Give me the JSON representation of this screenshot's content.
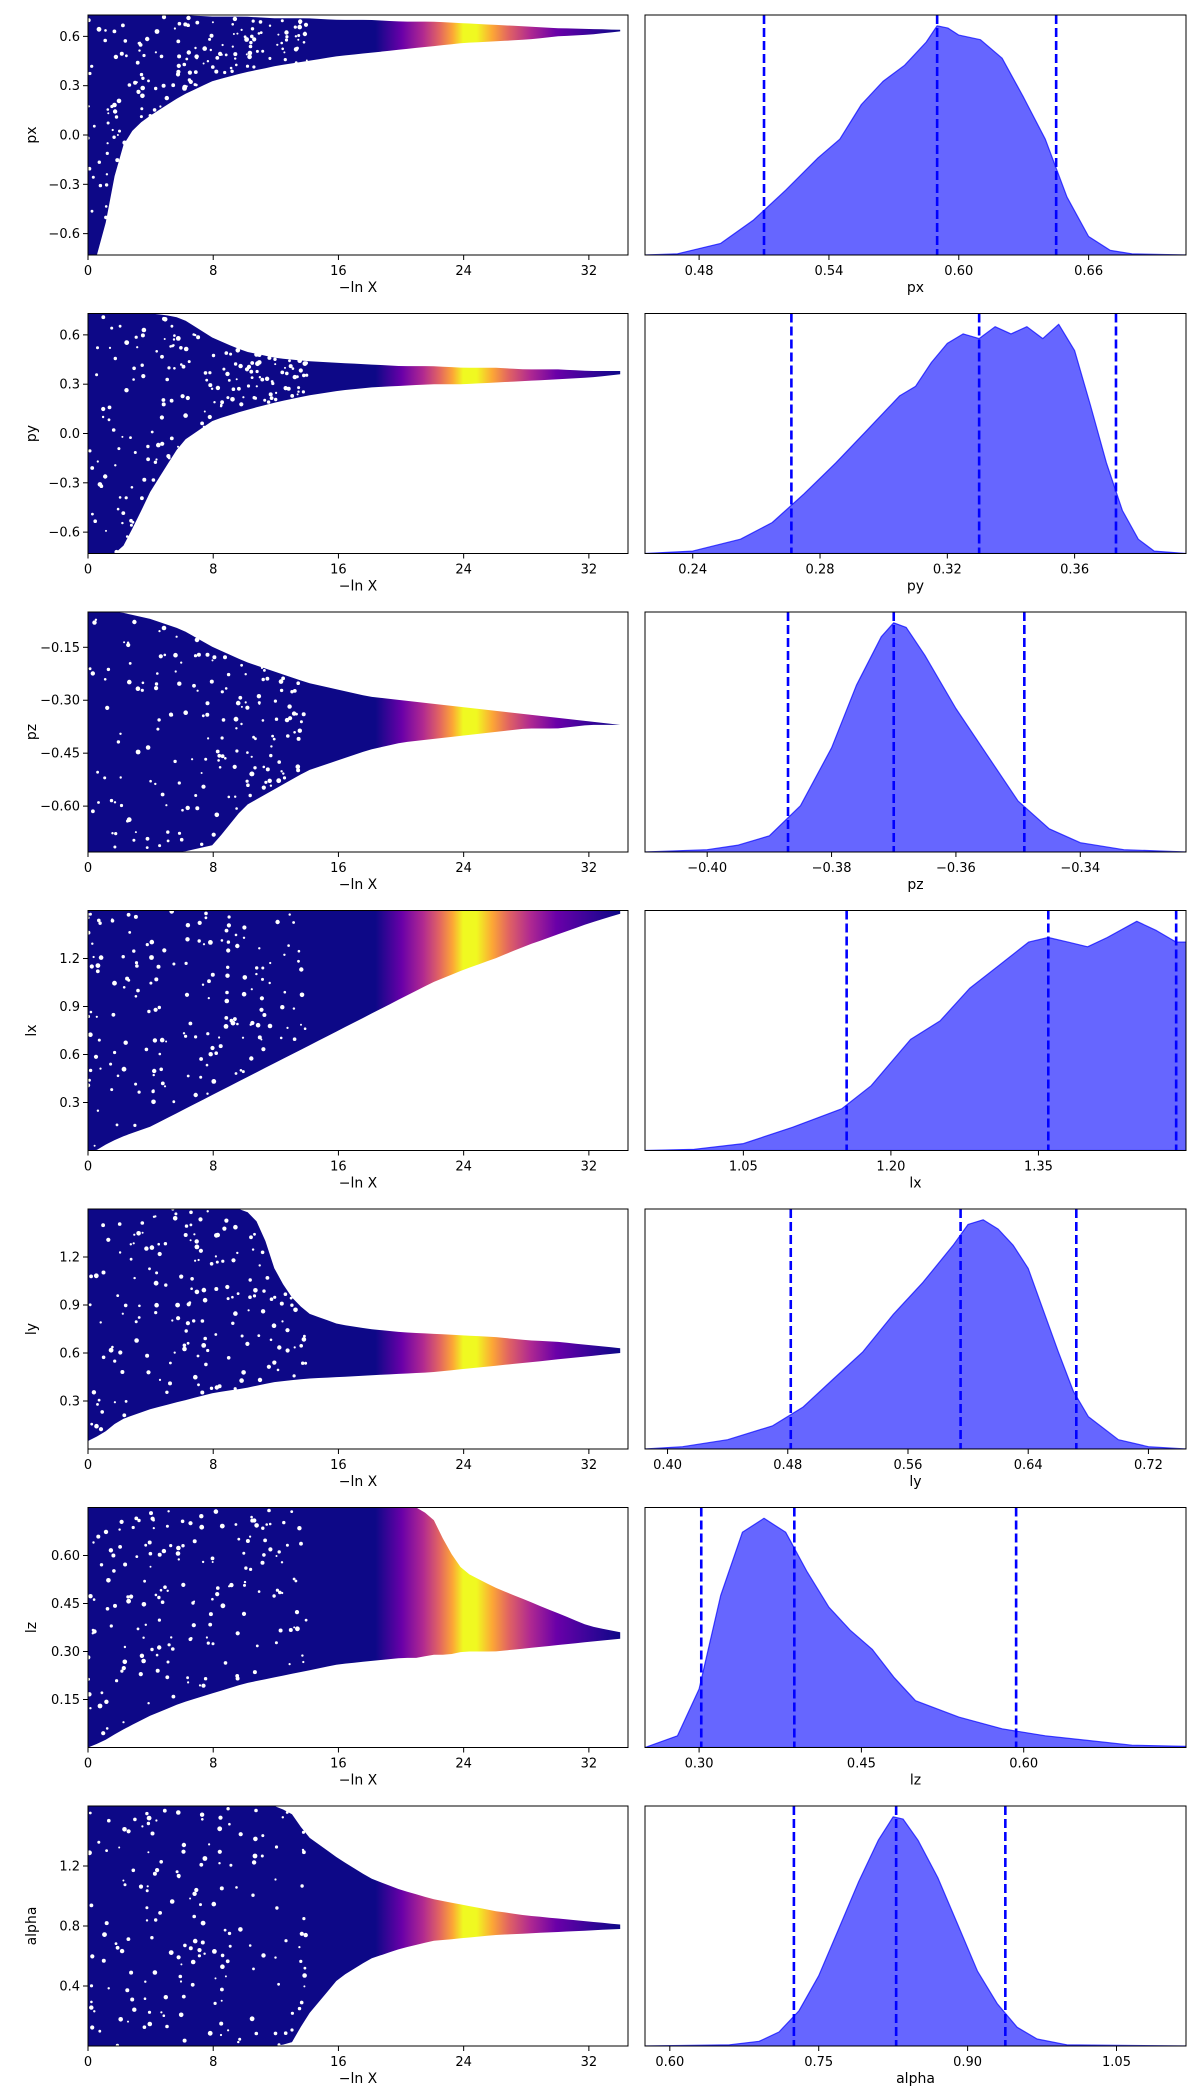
{
  "chart_data": [
    {
      "type": "scatter",
      "panel": "trace",
      "param": "px",
      "xlabel": "−ln X",
      "ylabel": "px",
      "xlim": [
        0,
        34.5
      ],
      "ylim": [
        -0.73,
        0.73
      ],
      "xticks": [
        0,
        8,
        16,
        24,
        32
      ],
      "yticks": [
        -0.6,
        -0.3,
        0.0,
        0.3,
        0.6
      ],
      "envelope": {
        "x": [
          0,
          0.6,
          1,
          1.6,
          2,
          3,
          4,
          5,
          6,
          8,
          10,
          12,
          14,
          16,
          18,
          20,
          22,
          24,
          26,
          28,
          30,
          32,
          34
        ],
        "upper": [
          0.73,
          0.73,
          0.73,
          0.73,
          0.73,
          0.73,
          0.73,
          0.73,
          0.73,
          0.72,
          0.72,
          0.71,
          0.71,
          0.7,
          0.7,
          0.69,
          0.69,
          0.68,
          0.67,
          0.66,
          0.65,
          0.645,
          0.64
        ],
        "lower": [
          -0.73,
          -0.73,
          -0.6,
          -0.3,
          -0.1,
          0.05,
          0.12,
          0.18,
          0.24,
          0.33,
          0.38,
          0.42,
          0.45,
          0.48,
          0.5,
          0.52,
          0.54,
          0.56,
          0.57,
          0.58,
          0.6,
          0.61,
          0.63
        ]
      }
    },
    {
      "type": "area",
      "panel": "posterior",
      "param": "px",
      "xlabel": "px",
      "xlim": [
        0.455,
        0.705
      ],
      "xticks": [
        0.48,
        0.54,
        0.6,
        0.66
      ],
      "quantiles": [
        0.51,
        0.59,
        0.645
      ],
      "x": [
        0.455,
        0.47,
        0.49,
        0.505,
        0.52,
        0.535,
        0.545,
        0.555,
        0.565,
        0.575,
        0.585,
        0.59,
        0.595,
        0.6,
        0.61,
        0.62,
        0.63,
        0.64,
        0.65,
        0.66,
        0.67,
        0.68,
        0.705
      ],
      "density": [
        0,
        0.005,
        0.05,
        0.15,
        0.28,
        0.42,
        0.5,
        0.65,
        0.75,
        0.82,
        0.92,
        0.99,
        0.98,
        0.95,
        0.93,
        0.85,
        0.68,
        0.5,
        0.25,
        0.08,
        0.02,
        0.005,
        0
      ]
    },
    {
      "type": "scatter",
      "panel": "trace",
      "param": "py",
      "xlabel": "−ln X",
      "ylabel": "py",
      "xlim": [
        0,
        34.5
      ],
      "ylim": [
        -0.73,
        0.73
      ],
      "xticks": [
        0,
        8,
        16,
        24,
        32
      ],
      "yticks": [
        -0.6,
        -0.3,
        0.0,
        0.3,
        0.6
      ],
      "envelope": {
        "x": [
          0,
          1,
          2,
          3,
          4,
          5,
          6,
          8,
          10,
          12,
          14,
          16,
          18,
          20,
          22,
          24,
          26,
          28,
          30,
          32,
          34
        ],
        "upper": [
          0.73,
          0.73,
          0.73,
          0.73,
          0.73,
          0.72,
          0.7,
          0.58,
          0.5,
          0.46,
          0.44,
          0.43,
          0.42,
          0.41,
          0.41,
          0.4,
          0.4,
          0.39,
          0.39,
          0.38,
          0.38
        ],
        "lower": [
          -0.73,
          -0.73,
          -0.73,
          -0.55,
          -0.35,
          -0.2,
          -0.05,
          0.08,
          0.14,
          0.19,
          0.23,
          0.26,
          0.28,
          0.29,
          0.3,
          0.3,
          0.31,
          0.32,
          0.33,
          0.34,
          0.36
        ]
      }
    },
    {
      "type": "area",
      "panel": "posterior",
      "param": "py",
      "xlabel": "py",
      "xlim": [
        0.225,
        0.395
      ],
      "xticks": [
        0.24,
        0.28,
        0.32,
        0.36
      ],
      "quantiles": [
        0.271,
        0.33,
        0.373
      ],
      "x": [
        0.225,
        0.24,
        0.255,
        0.265,
        0.275,
        0.285,
        0.295,
        0.305,
        0.31,
        0.315,
        0.32,
        0.325,
        0.33,
        0.335,
        0.34,
        0.345,
        0.35,
        0.355,
        0.36,
        0.365,
        0.37,
        0.375,
        0.38,
        0.385,
        0.395
      ],
      "density": [
        0,
        0.01,
        0.06,
        0.13,
        0.25,
        0.38,
        0.52,
        0.66,
        0.7,
        0.8,
        0.88,
        0.92,
        0.9,
        0.95,
        0.92,
        0.95,
        0.9,
        0.96,
        0.85,
        0.62,
        0.38,
        0.18,
        0.06,
        0.01,
        0
      ]
    },
    {
      "type": "scatter",
      "panel": "trace",
      "param": "pz",
      "xlabel": "−ln X",
      "ylabel": "pz",
      "xlim": [
        0,
        34.5
      ],
      "ylim": [
        -0.73,
        -0.05
      ],
      "xticks": [
        0,
        8,
        16,
        24,
        32
      ],
      "yticks": [
        -0.6,
        -0.45,
        -0.3,
        -0.15
      ],
      "envelope": {
        "x": [
          0,
          1,
          2,
          4,
          6,
          8,
          10,
          12,
          14,
          16,
          18,
          20,
          22,
          24,
          26,
          28,
          30,
          32,
          34
        ],
        "upper": [
          -0.05,
          -0.05,
          -0.05,
          -0.07,
          -0.1,
          -0.15,
          -0.19,
          -0.22,
          -0.25,
          -0.27,
          -0.29,
          -0.3,
          -0.31,
          -0.32,
          -0.33,
          -0.34,
          -0.35,
          -0.36,
          -0.37
        ],
        "lower": [
          -0.73,
          -0.73,
          -0.73,
          -0.73,
          -0.73,
          -0.71,
          -0.6,
          -0.55,
          -0.5,
          -0.47,
          -0.44,
          -0.42,
          -0.41,
          -0.4,
          -0.39,
          -0.38,
          -0.38,
          -0.37,
          -0.37
        ]
      }
    },
    {
      "type": "area",
      "panel": "posterior",
      "param": "pz",
      "xlabel": "pz",
      "xlim": [
        -0.41,
        -0.323
      ],
      "xticks": [
        -0.4,
        -0.38,
        -0.36,
        -0.34
      ],
      "quantiles": [
        -0.387,
        -0.37,
        -0.349
      ],
      "x": [
        -0.41,
        -0.4,
        -0.395,
        -0.39,
        -0.385,
        -0.38,
        -0.376,
        -0.372,
        -0.37,
        -0.368,
        -0.365,
        -0.36,
        -0.355,
        -0.35,
        -0.345,
        -0.34,
        -0.333,
        -0.323
      ],
      "density": [
        0,
        0.01,
        0.03,
        0.07,
        0.2,
        0.45,
        0.72,
        0.93,
        0.99,
        0.97,
        0.85,
        0.62,
        0.42,
        0.22,
        0.1,
        0.04,
        0.01,
        0
      ]
    },
    {
      "type": "scatter",
      "panel": "trace",
      "param": "lx",
      "xlabel": "−ln X",
      "ylabel": "lx",
      "xlim": [
        0,
        34.5
      ],
      "ylim": [
        0,
        1.5
      ],
      "xticks": [
        0,
        8,
        16,
        24,
        32
      ],
      "yticks": [
        0.3,
        0.6,
        0.9,
        1.2
      ],
      "envelope": {
        "x": [
          0,
          0.5,
          1,
          2,
          4,
          6,
          8,
          10,
          12,
          14,
          16,
          18,
          20,
          22,
          24,
          26,
          28,
          30,
          32,
          34
        ],
        "upper": [
          1.5,
          1.5,
          1.5,
          1.5,
          1.5,
          1.5,
          1.5,
          1.5,
          1.5,
          1.5,
          1.5,
          1.5,
          1.5,
          1.5,
          1.5,
          1.5,
          1.5,
          1.5,
          1.5,
          1.5
        ],
        "lower": [
          0,
          0,
          0.03,
          0.08,
          0.15,
          0.25,
          0.35,
          0.45,
          0.55,
          0.65,
          0.75,
          0.85,
          0.95,
          1.05,
          1.13,
          1.2,
          1.28,
          1.35,
          1.42,
          1.48
        ]
      }
    },
    {
      "type": "area",
      "panel": "posterior",
      "param": "lx",
      "xlabel": "lx",
      "xlim": [
        0.95,
        1.5
      ],
      "xticks": [
        1.05,
        1.2,
        1.35
      ],
      "quantiles": [
        1.155,
        1.36,
        1.49
      ],
      "x": [
        0.95,
        1.0,
        1.05,
        1.1,
        1.15,
        1.18,
        1.2,
        1.22,
        1.25,
        1.28,
        1.31,
        1.34,
        1.36,
        1.38,
        1.4,
        1.42,
        1.45,
        1.47,
        1.49,
        1.5
      ],
      "density": [
        0,
        0.005,
        0.03,
        0.1,
        0.18,
        0.28,
        0.38,
        0.48,
        0.56,
        0.7,
        0.8,
        0.9,
        0.92,
        0.9,
        0.88,
        0.92,
        0.99,
        0.95,
        0.9,
        0.9
      ]
    },
    {
      "type": "scatter",
      "panel": "trace",
      "param": "ly",
      "xlabel": "−ln X",
      "ylabel": "ly",
      "xlim": [
        0,
        34.5
      ],
      "ylim": [
        0,
        1.5
      ],
      "xticks": [
        0,
        8,
        16,
        24,
        32
      ],
      "yticks": [
        0.3,
        0.6,
        0.9,
        1.2
      ],
      "envelope": {
        "x": [
          0,
          1,
          2,
          4,
          6,
          8,
          10,
          11,
          12,
          13,
          14,
          16,
          18,
          20,
          22,
          24,
          26,
          28,
          30,
          32,
          34
        ],
        "upper": [
          1.5,
          1.5,
          1.5,
          1.5,
          1.5,
          1.5,
          1.5,
          1.4,
          1.1,
          0.95,
          0.85,
          0.78,
          0.75,
          0.73,
          0.72,
          0.71,
          0.7,
          0.68,
          0.67,
          0.65,
          0.63
        ],
        "lower": [
          0.05,
          0.1,
          0.18,
          0.25,
          0.3,
          0.35,
          0.38,
          0.4,
          0.42,
          0.43,
          0.44,
          0.45,
          0.46,
          0.47,
          0.48,
          0.5,
          0.52,
          0.54,
          0.56,
          0.58,
          0.6
        ]
      }
    },
    {
      "type": "area",
      "panel": "posterior",
      "param": "ly",
      "xlabel": "ly",
      "xlim": [
        0.385,
        0.745
      ],
      "xticks": [
        0.4,
        0.48,
        0.56,
        0.64,
        0.72
      ],
      "quantiles": [
        0.482,
        0.595,
        0.672
      ],
      "x": [
        0.385,
        0.41,
        0.44,
        0.47,
        0.49,
        0.51,
        0.53,
        0.55,
        0.57,
        0.59,
        0.6,
        0.61,
        0.62,
        0.63,
        0.64,
        0.65,
        0.66,
        0.67,
        0.68,
        0.7,
        0.72,
        0.745
      ],
      "density": [
        0,
        0.01,
        0.04,
        0.1,
        0.18,
        0.3,
        0.42,
        0.58,
        0.72,
        0.88,
        0.97,
        0.99,
        0.95,
        0.88,
        0.78,
        0.6,
        0.42,
        0.25,
        0.14,
        0.04,
        0.01,
        0
      ]
    },
    {
      "type": "scatter",
      "panel": "trace",
      "param": "lz",
      "xlabel": "−ln X",
      "ylabel": "lz",
      "xlim": [
        0,
        34.5
      ],
      "ylim": [
        0,
        0.75
      ],
      "xticks": [
        0,
        8,
        16,
        24,
        32
      ],
      "yticks": [
        0.15,
        0.3,
        0.45,
        0.6
      ],
      "envelope": {
        "x": [
          0,
          1,
          2,
          4,
          6,
          8,
          10,
          12,
          14,
          16,
          18,
          20,
          21,
          22,
          23,
          24,
          26,
          28,
          30,
          32,
          34
        ],
        "upper": [
          0.75,
          0.75,
          0.75,
          0.75,
          0.75,
          0.75,
          0.75,
          0.75,
          0.75,
          0.75,
          0.75,
          0.75,
          0.75,
          0.72,
          0.62,
          0.55,
          0.5,
          0.46,
          0.42,
          0.38,
          0.36
        ],
        "lower": [
          0,
          0.02,
          0.05,
          0.1,
          0.14,
          0.17,
          0.2,
          0.22,
          0.24,
          0.26,
          0.27,
          0.28,
          0.28,
          0.29,
          0.29,
          0.3,
          0.3,
          0.31,
          0.32,
          0.33,
          0.34
        ]
      }
    },
    {
      "type": "area",
      "panel": "posterior",
      "param": "lz",
      "xlabel": "lz",
      "xlim": [
        0.25,
        0.75
      ],
      "xticks": [
        0.3,
        0.45,
        0.6
      ],
      "quantiles": [
        0.302,
        0.388,
        0.593
      ],
      "x": [
        0.25,
        0.28,
        0.3,
        0.32,
        0.34,
        0.36,
        0.38,
        0.4,
        0.42,
        0.44,
        0.46,
        0.48,
        0.5,
        0.54,
        0.58,
        0.62,
        0.66,
        0.7,
        0.75
      ],
      "density": [
        0,
        0.05,
        0.25,
        0.65,
        0.92,
        0.98,
        0.92,
        0.75,
        0.6,
        0.5,
        0.42,
        0.3,
        0.2,
        0.13,
        0.08,
        0.05,
        0.03,
        0.01,
        0.005
      ]
    },
    {
      "type": "scatter",
      "panel": "trace",
      "param": "alpha",
      "xlabel": "−ln X",
      "ylabel": "alpha",
      "xlim": [
        0,
        34.5
      ],
      "ylim": [
        0,
        1.6
      ],
      "xticks": [
        0,
        8,
        16,
        24,
        32
      ],
      "yticks": [
        0.4,
        0.8,
        1.2
      ],
      "envelope": {
        "x": [
          0,
          2,
          4,
          6,
          8,
          10,
          12,
          13,
          14,
          16,
          18,
          20,
          22,
          24,
          26,
          28,
          30,
          32,
          34
        ],
        "upper": [
          1.6,
          1.6,
          1.6,
          1.6,
          1.6,
          1.6,
          1.6,
          1.55,
          1.4,
          1.25,
          1.12,
          1.04,
          0.98,
          0.94,
          0.9,
          0.87,
          0.85,
          0.83,
          0.81
        ],
        "lower": [
          0,
          0,
          0,
          0,
          0,
          0,
          0,
          0.02,
          0.2,
          0.45,
          0.58,
          0.65,
          0.7,
          0.72,
          0.74,
          0.75,
          0.76,
          0.77,
          0.78
        ]
      }
    },
    {
      "type": "area",
      "panel": "posterior",
      "param": "alpha",
      "xlabel": "alpha",
      "xlim": [
        0.575,
        1.12
      ],
      "xticks": [
        0.6,
        0.75,
        0.9,
        1.05
      ],
      "quantiles": [
        0.725,
        0.828,
        0.938
      ],
      "x": [
        0.575,
        0.66,
        0.69,
        0.71,
        0.73,
        0.75,
        0.77,
        0.79,
        0.81,
        0.825,
        0.835,
        0.85,
        0.87,
        0.89,
        0.91,
        0.93,
        0.95,
        0.97,
        1.0,
        1.12
      ],
      "density": [
        0,
        0.005,
        0.02,
        0.06,
        0.15,
        0.3,
        0.5,
        0.7,
        0.88,
        0.98,
        0.97,
        0.88,
        0.72,
        0.52,
        0.32,
        0.18,
        0.08,
        0.03,
        0.005,
        0
      ]
    }
  ]
}
